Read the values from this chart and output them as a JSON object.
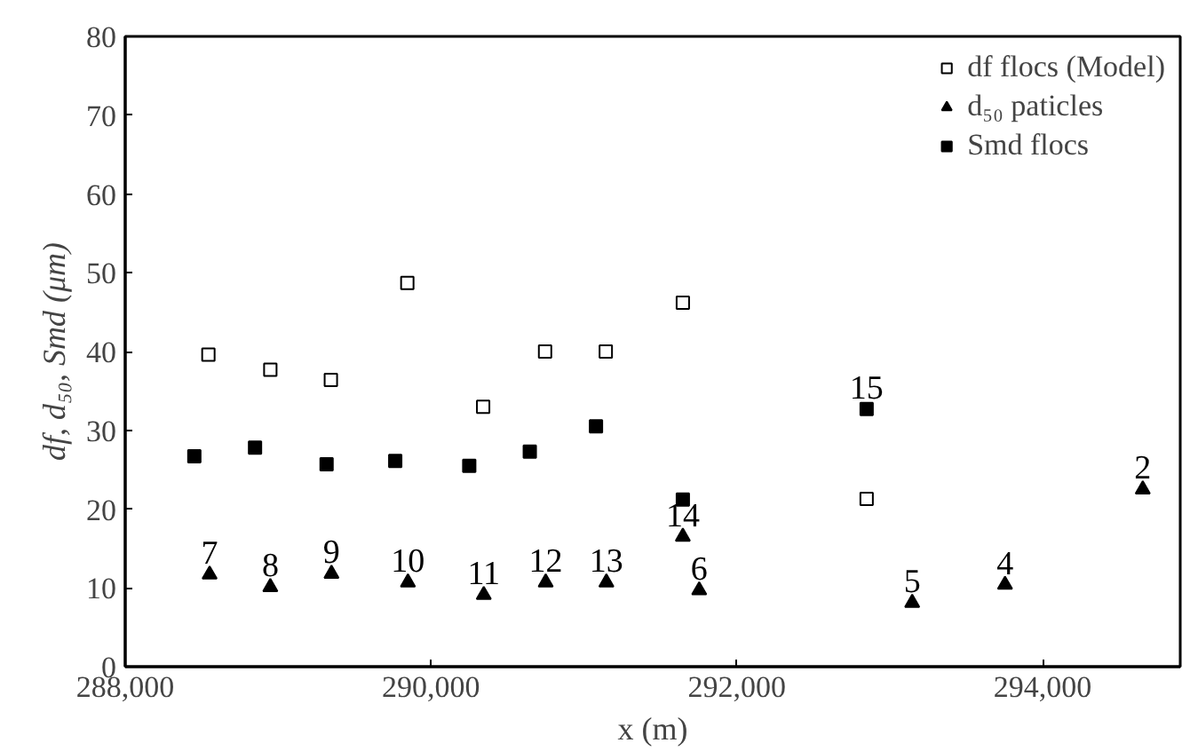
{
  "chart_data": {
    "type": "scatter",
    "xlabel": "x (m)",
    "ylabel": "df, d₅₀, Smd (μm)",
    "xlim": [
      288000,
      294900
    ],
    "xticks": [
      {
        "value": 288000,
        "label": "288,000"
      },
      {
        "value": 290000,
        "label": "290,000"
      },
      {
        "value": 292000,
        "label": "292,000"
      },
      {
        "value": 294000,
        "label": "294,000"
      }
    ],
    "ylim": [
      0,
      80
    ],
    "yticks": [
      0,
      10,
      20,
      30,
      40,
      50,
      60,
      70,
      80
    ],
    "grid": false,
    "legend": "top right",
    "series": [
      {
        "name": "df flocs (Model)",
        "color": "#ffffff",
        "marker": "square",
        "x": [
          288544,
          288949,
          289345,
          289845,
          290341,
          290746,
          291143,
          291647,
          292849
        ],
        "values": [
          39.6,
          37.7,
          36.4,
          48.7,
          33,
          40,
          40,
          46.2,
          21.3
        ]
      },
      {
        "name": "d₅₀ paticles",
        "color": "#000000",
        "marker": "triangle",
        "x": [
          288552,
          288949,
          289349,
          289849,
          290345,
          290750,
          291147,
          291647,
          291754,
          293147,
          293754,
          294655
        ],
        "values": [
          11.7,
          10.1,
          11.8,
          10.7,
          9.1,
          10.7,
          10.7,
          16.5,
          9.7,
          8.1,
          10.4,
          22.5
        ]
      },
      {
        "name": "Smd flocs",
        "color": "#000000",
        "marker": "square",
        "x": [
          288452,
          288849,
          289317,
          289766,
          290250,
          290646,
          291079,
          291647,
          292849
        ],
        "values": [
          26.7,
          27.8,
          25.7,
          26.1,
          25.5,
          27.3,
          30.5,
          21.2,
          32.7
        ]
      }
    ],
    "annotations": [
      {
        "text": "7",
        "x": 288552,
        "y": 11.7
      },
      {
        "text": "8",
        "x": 288949,
        "y": 10.1
      },
      {
        "text": "9",
        "x": 289349,
        "y": 11.8
      },
      {
        "text": "10",
        "x": 289849,
        "y": 10.7
      },
      {
        "text": "11",
        "x": 290345,
        "y": 9.1
      },
      {
        "text": "12",
        "x": 290750,
        "y": 10.7
      },
      {
        "text": "13",
        "x": 291147,
        "y": 10.7
      },
      {
        "text": "14",
        "x": 291647,
        "y": 16.5
      },
      {
        "text": "6",
        "x": 291754,
        "y": 9.7
      },
      {
        "text": "15",
        "x": 292849,
        "y": 32.7
      },
      {
        "text": "5",
        "x": 293147,
        "y": 8.1
      },
      {
        "text": "4",
        "x": 293754,
        "y": 10.4
      },
      {
        "text": "2",
        "x": 294655,
        "y": 22.5
      }
    ]
  }
}
